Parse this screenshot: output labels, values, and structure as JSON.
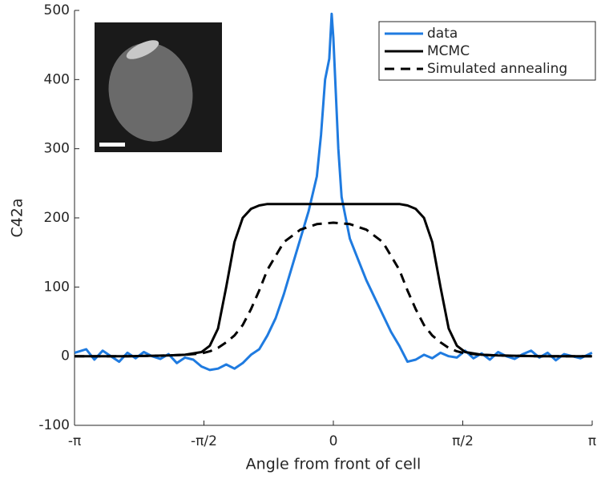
{
  "chart_data": {
    "type": "line",
    "xlabel": "Angle from front of cell",
    "ylabel": "C42a",
    "xlim": [
      -3.14159,
      3.14159
    ],
    "xticks": [
      {
        "value": -3.14159,
        "label": "-π"
      },
      {
        "value": -1.5708,
        "label": "-π/2"
      },
      0,
      {
        "value": 1.5708,
        "label": "π/2"
      },
      {
        "value": 3.14159,
        "label": "π"
      }
    ],
    "ylim": [
      -100,
      500
    ],
    "yticks": [
      -100,
      0,
      100,
      200,
      300,
      400,
      500
    ],
    "legend": "top-right",
    "series": [
      {
        "name": "data",
        "color": "#1f7be0",
        "dash": "solid",
        "x": [
          -3.14,
          -3.0,
          -2.9,
          -2.8,
          -2.7,
          -2.6,
          -2.5,
          -2.4,
          -2.3,
          -2.2,
          -2.1,
          -2.0,
          -1.9,
          -1.8,
          -1.7,
          -1.6,
          -1.5,
          -1.4,
          -1.3,
          -1.2,
          -1.1,
          -1.0,
          -0.9,
          -0.8,
          -0.7,
          -0.6,
          -0.5,
          -0.4,
          -0.3,
          -0.2,
          -0.15,
          -0.1,
          -0.05,
          -0.02,
          0,
          0.03,
          0.06,
          0.1,
          0.15,
          0.2,
          0.3,
          0.4,
          0.5,
          0.6,
          0.7,
          0.8,
          0.9,
          1.0,
          1.1,
          1.2,
          1.3,
          1.4,
          1.5,
          1.6,
          1.7,
          1.8,
          1.9,
          2.0,
          2.1,
          2.2,
          2.3,
          2.4,
          2.5,
          2.6,
          2.7,
          2.8,
          2.9,
          3.0,
          3.14
        ],
        "values": [
          5,
          10,
          -5,
          8,
          0,
          -8,
          5,
          -3,
          6,
          0,
          -4,
          3,
          -10,
          -2,
          -5,
          -15,
          -20,
          -18,
          -12,
          -18,
          -10,
          2,
          10,
          30,
          55,
          90,
          130,
          170,
          210,
          260,
          320,
          400,
          430,
          495,
          460,
          380,
          300,
          230,
          200,
          170,
          140,
          110,
          85,
          60,
          35,
          15,
          -8,
          -5,
          2,
          -3,
          5,
          0,
          -2,
          8,
          -3,
          4,
          -5,
          6,
          0,
          -4,
          3,
          8,
          -2,
          5,
          -6,
          3,
          0,
          -3,
          5
        ]
      },
      {
        "name": "MCMC",
        "color": "#000000",
        "dash": "solid",
        "x": [
          -3.14,
          -2.5,
          -2,
          -1.8,
          -1.6,
          -1.5,
          -1.4,
          -1.3,
          -1.2,
          -1.1,
          -1.0,
          -0.9,
          -0.8,
          -0.6,
          -0.4,
          -0.2,
          0,
          0.2,
          0.4,
          0.6,
          0.8,
          0.9,
          1.0,
          1.1,
          1.2,
          1.3,
          1.4,
          1.5,
          1.6,
          1.8,
          2,
          2.5,
          3.14
        ],
        "values": [
          0,
          0,
          1,
          2,
          6,
          15,
          40,
          100,
          165,
          200,
          213,
          218,
          220,
          220,
          220,
          220,
          220,
          220,
          220,
          220,
          220,
          218,
          213,
          200,
          165,
          100,
          40,
          15,
          6,
          2,
          1,
          0,
          0
        ]
      },
      {
        "name": "Simulated annealing",
        "color": "#000000",
        "dash": "dashed",
        "x": [
          -3.14,
          -2.5,
          -2,
          -1.8,
          -1.6,
          -1.5,
          -1.4,
          -1.3,
          -1.2,
          -1.1,
          -1.0,
          -0.9,
          -0.8,
          -0.6,
          -0.4,
          -0.2,
          0,
          0.2,
          0.4,
          0.6,
          0.8,
          0.9,
          1.0,
          1.1,
          1.2,
          1.3,
          1.4,
          1.5,
          1.6,
          1.8,
          2,
          2.5,
          3.14
        ],
        "values": [
          0,
          0,
          1,
          2,
          4,
          7,
          12,
          20,
          30,
          45,
          68,
          95,
          125,
          165,
          183,
          191,
          193,
          191,
          183,
          165,
          125,
          95,
          68,
          45,
          30,
          20,
          12,
          7,
          4,
          2,
          1,
          0,
          0
        ]
      }
    ]
  }
}
